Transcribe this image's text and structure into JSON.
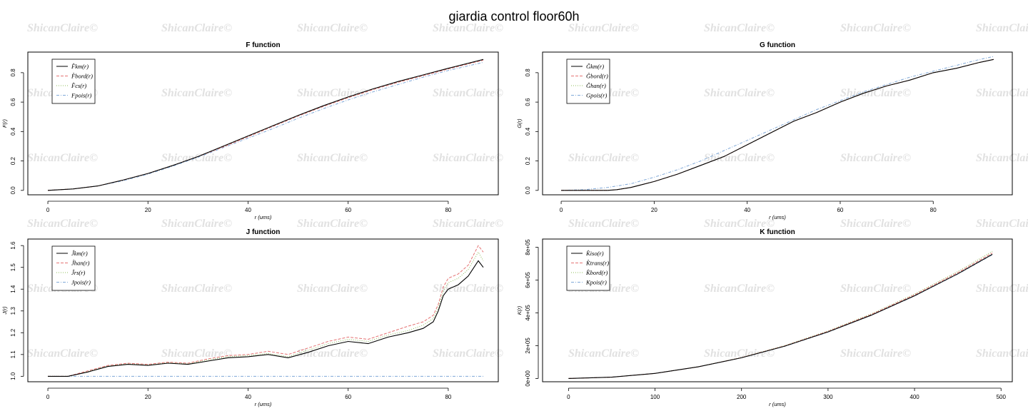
{
  "figure": {
    "title": "giardia control floor60h",
    "watermark": "ShicanClaire©"
  },
  "chart_data": [
    {
      "type": "line",
      "title": "F function",
      "xlabel": "r (ums)",
      "ylabel": "F(r)",
      "xlim": [
        -4,
        90
      ],
      "ylim": [
        -0.03,
        0.94
      ],
      "xticks": [
        0,
        20,
        40,
        60,
        80
      ],
      "yticks": [
        0.0,
        0.2,
        0.4,
        0.6,
        0.8
      ],
      "x": [
        0,
        5,
        10,
        15,
        20,
        25,
        30,
        35,
        40,
        45,
        50,
        55,
        60,
        65,
        70,
        75,
        80,
        87
      ],
      "series": [
        {
          "name": "F̂km(r)",
          "color": "#000000",
          "dash": "",
          "values": [
            0,
            0.01,
            0.03,
            0.07,
            0.115,
            0.17,
            0.23,
            0.3,
            0.37,
            0.44,
            0.51,
            0.575,
            0.635,
            0.69,
            0.74,
            0.785,
            0.83,
            0.89
          ]
        },
        {
          "name": "F̂bord(r)",
          "color": "#e57373",
          "dash": "4,2",
          "values": [
            0,
            0.01,
            0.03,
            0.07,
            0.115,
            0.17,
            0.23,
            0.295,
            0.365,
            0.435,
            0.505,
            0.57,
            0.63,
            0.685,
            0.735,
            0.78,
            0.825,
            0.885
          ]
        },
        {
          "name": "F̂cs(r)",
          "color": "#8fbc5a",
          "dash": "1,2",
          "values": [
            0,
            0.01,
            0.03,
            0.07,
            0.115,
            0.17,
            0.23,
            0.3,
            0.37,
            0.44,
            0.51,
            0.575,
            0.635,
            0.69,
            0.74,
            0.785,
            0.83,
            0.89
          ]
        },
        {
          "name": "Fpois(r)",
          "color": "#7fa8d8",
          "dash": "4,2,1,2",
          "values": [
            0,
            0.01,
            0.03,
            0.065,
            0.11,
            0.165,
            0.225,
            0.29,
            0.355,
            0.42,
            0.49,
            0.555,
            0.615,
            0.67,
            0.72,
            0.77,
            0.815,
            0.87
          ]
        }
      ],
      "legend": "top-left"
    },
    {
      "type": "line",
      "title": "G function",
      "xlabel": "r (ums)",
      "ylabel": "G(r)",
      "xlim": [
        -4,
        97
      ],
      "ylim": [
        -0.03,
        0.94
      ],
      "xticks": [
        0,
        20,
        40,
        60,
        80
      ],
      "yticks": [
        0.0,
        0.2,
        0.4,
        0.6,
        0.8
      ],
      "x": [
        0,
        5,
        10,
        12,
        15,
        20,
        25,
        30,
        35,
        40,
        45,
        50,
        55,
        60,
        65,
        70,
        75,
        80,
        85,
        90,
        93
      ],
      "series": [
        {
          "name": "Ĝkm(r)",
          "color": "#000000",
          "dash": "",
          "values": [
            0,
            0,
            0,
            0.005,
            0.02,
            0.06,
            0.11,
            0.17,
            0.23,
            0.31,
            0.39,
            0.47,
            0.53,
            0.6,
            0.66,
            0.71,
            0.75,
            0.8,
            0.83,
            0.87,
            0.89
          ]
        },
        {
          "name": "Ĝbord(r)",
          "color": "#e57373",
          "dash": "4,2",
          "values": [
            0,
            0,
            0,
            0.005,
            0.02,
            0.06,
            0.11,
            0.17,
            0.23,
            0.31,
            0.39,
            0.47,
            0.53,
            0.6,
            0.66,
            0.71,
            0.75,
            0.8,
            0.83,
            0.87,
            0.89
          ]
        },
        {
          "name": "Ĝhan(r)",
          "color": "#8fbc5a",
          "dash": "1,2",
          "values": [
            0,
            0,
            0,
            0.005,
            0.02,
            0.06,
            0.11,
            0.17,
            0.23,
            0.31,
            0.39,
            0.47,
            0.53,
            0.6,
            0.66,
            0.71,
            0.75,
            0.8,
            0.83,
            0.87,
            0.89
          ]
        },
        {
          "name": "Gpois(r)",
          "color": "#7fa8d8",
          "dash": "4,2,1,2",
          "values": [
            0,
            0.005,
            0.02,
            0.03,
            0.045,
            0.09,
            0.14,
            0.2,
            0.27,
            0.34,
            0.41,
            0.48,
            0.55,
            0.61,
            0.67,
            0.72,
            0.77,
            0.81,
            0.85,
            0.89,
            0.91
          ]
        }
      ],
      "legend": "top-left"
    },
    {
      "type": "line",
      "title": "J function",
      "xlabel": "r (ums)",
      "ylabel": "J(r)",
      "xlim": [
        -4,
        90
      ],
      "ylim": [
        0.975,
        1.63
      ],
      "xticks": [
        0,
        20,
        40,
        60,
        80
      ],
      "yticks": [
        1.0,
        1.1,
        1.2,
        1.3,
        1.4,
        1.5,
        1.6
      ],
      "x": [
        0,
        4,
        8,
        12,
        16,
        20,
        24,
        28,
        32,
        36,
        40,
        44,
        48,
        52,
        56,
        60,
        64,
        68,
        72,
        75,
        77,
        78,
        79,
        80,
        82,
        84,
        86,
        87
      ],
      "series": [
        {
          "name": "Ĵkm(r)",
          "color": "#000000",
          "dash": "",
          "values": [
            1.0,
            1.0,
            1.02,
            1.045,
            1.055,
            1.05,
            1.06,
            1.055,
            1.07,
            1.085,
            1.09,
            1.1,
            1.085,
            1.11,
            1.14,
            1.16,
            1.15,
            1.18,
            1.2,
            1.22,
            1.25,
            1.3,
            1.37,
            1.4,
            1.42,
            1.46,
            1.53,
            1.5
          ]
        },
        {
          "name": "Ĵhan(r)",
          "color": "#e57373",
          "dash": "4,2",
          "values": [
            1.0,
            1.0,
            1.025,
            1.05,
            1.06,
            1.055,
            1.065,
            1.06,
            1.08,
            1.095,
            1.1,
            1.115,
            1.1,
            1.13,
            1.16,
            1.18,
            1.17,
            1.2,
            1.23,
            1.25,
            1.28,
            1.33,
            1.41,
            1.45,
            1.47,
            1.51,
            1.6,
            1.57
          ]
        },
        {
          "name": "Ĵrs(r)",
          "color": "#8fbc5a",
          "dash": "1,2",
          "values": [
            1.0,
            1.0,
            1.022,
            1.047,
            1.057,
            1.052,
            1.062,
            1.057,
            1.075,
            1.09,
            1.095,
            1.105,
            1.09,
            1.12,
            1.15,
            1.17,
            1.16,
            1.19,
            1.21,
            1.235,
            1.265,
            1.315,
            1.39,
            1.43,
            1.45,
            1.49,
            1.57,
            1.53
          ]
        },
        {
          "name": "Jpois(r)",
          "color": "#7fa8d8",
          "dash": "4,2,1,2",
          "values": [
            1,
            1,
            1,
            1,
            1,
            1,
            1,
            1,
            1,
            1,
            1,
            1,
            1,
            1,
            1,
            1,
            1,
            1,
            1,
            1,
            1,
            1,
            1,
            1,
            1,
            1,
            1,
            1
          ]
        }
      ],
      "legend": "top-left"
    },
    {
      "type": "line",
      "title": "K function",
      "xlabel": "r (ums)",
      "ylabel": "K(r)",
      "xlim": [
        -30,
        513
      ],
      "ylim": [
        -20000,
        850000
      ],
      "xticks": [
        0,
        100,
        200,
        300,
        400,
        500
      ],
      "yticks": [
        0,
        200000,
        400000,
        600000,
        800000
      ],
      "ytick_labels": [
        "0e+00",
        "2e+05",
        "4e+05",
        "6e+05",
        "8e+05"
      ],
      "x": [
        0,
        50,
        100,
        150,
        200,
        250,
        300,
        350,
        400,
        450,
        490
      ],
      "series": [
        {
          "name": "K̂iso(r)",
          "color": "#000000",
          "dash": "",
          "values": [
            0,
            8000,
            31000,
            71000,
            126000,
            197000,
            284000,
            386000,
            504000,
            638000,
            757000
          ]
        },
        {
          "name": "K̂trans(r)",
          "color": "#e57373",
          "dash": "4,2",
          "values": [
            0,
            8000,
            31000,
            71000,
            127000,
            199000,
            287000,
            390000,
            510000,
            645000,
            765000
          ]
        },
        {
          "name": "K̂bord(r)",
          "color": "#8fbc5a",
          "dash": "1,2",
          "values": [
            0,
            8000,
            31000,
            72000,
            128000,
            201000,
            290000,
            394000,
            515000,
            652000,
            775000
          ]
        },
        {
          "name": "Kpois(r)",
          "color": "#7fa8d8",
          "dash": "4,2,1,2",
          "values": [
            0,
            7900,
            31400,
            70700,
            125700,
            196300,
            282700,
            384800,
            502700,
            636200,
            754300
          ]
        }
      ],
      "legend": "top-left"
    }
  ]
}
